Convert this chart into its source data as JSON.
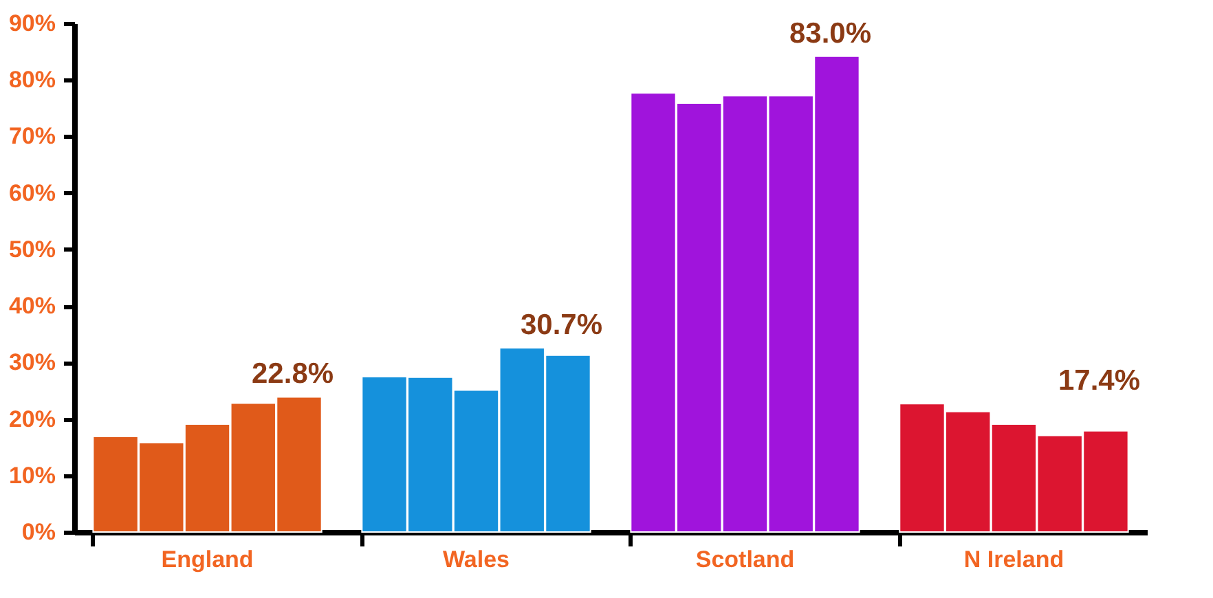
{
  "chart_data": {
    "type": "bar",
    "categories": [
      "England",
      "Wales",
      "Scotland",
      "N Ireland"
    ],
    "series": [
      {
        "colors": [
          "#e05a1a",
          "#1591dc",
          "#a014dc",
          "#dc1530"
        ],
        "values": [
          16.9,
          27.5,
          77.7,
          22.7
        ]
      },
      {
        "colors": [
          "#e05a1a",
          "#1591dc",
          "#a014dc",
          "#dc1530"
        ],
        "values": [
          15.8,
          27.4,
          75.9,
          21.3
        ]
      },
      {
        "colors": [
          "#e05a1a",
          "#1591dc",
          "#a014dc",
          "#dc1530"
        ],
        "values": [
          19.1,
          25.1,
          77.2,
          19.1
        ]
      },
      {
        "colors": [
          "#e05a1a",
          "#1591dc",
          "#a014dc",
          "#dc1530"
        ],
        "values": [
          22.8,
          32.6,
          77.2,
          17.1
        ]
      },
      {
        "colors": [
          "#e05a1a",
          "#1591dc",
          "#a014dc",
          "#dc1530"
        ],
        "values": [
          23.9,
          31.3,
          84.2,
          17.9
        ]
      }
    ],
    "annotations": [
      "22.8%",
      "30.7%",
      "83.0%",
      "17.4%"
    ],
    "ylim": [
      0,
      90
    ],
    "yticks": [
      {
        "value": 0,
        "label": "0%"
      },
      {
        "value": 10,
        "label": "10%"
      },
      {
        "value": 20,
        "label": "20%"
      },
      {
        "value": 30,
        "label": "30%"
      },
      {
        "value": 40,
        "label": "40%"
      },
      {
        "value": 50,
        "label": "50%"
      },
      {
        "value": 60,
        "label": "60%"
      },
      {
        "value": 70,
        "label": "70%"
      },
      {
        "value": 80,
        "label": "80%"
      },
      {
        "value": 90,
        "label": "90%"
      }
    ],
    "grid": false
  }
}
